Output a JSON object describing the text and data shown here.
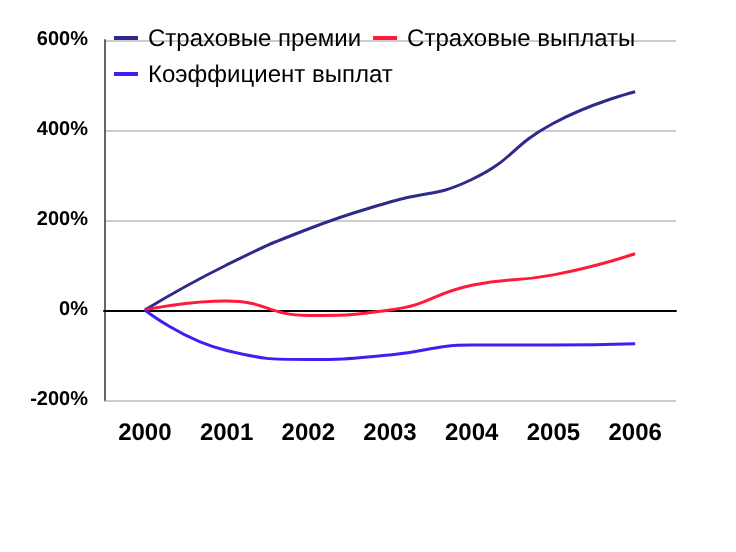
{
  "chart_data": {
    "type": "line",
    "categories": [
      "2000",
      "2001",
      "2002",
      "2003",
      "2004",
      "2005",
      "2006"
    ],
    "series": [
      {
        "name": "Страховые премии",
        "color": "#2e2a8c",
        "values": [
          0,
          100,
          180,
          240,
          290,
          415,
          485
        ]
      },
      {
        "name": "Страховые выплаты",
        "color": "#ff1a3c",
        "values": [
          0,
          20,
          -12,
          0,
          55,
          78,
          125
        ]
      },
      {
        "name": "Коэффициент выплат",
        "color": "#3b22f0",
        "values": [
          0,
          -90,
          -110,
          -100,
          -78,
          -78,
          -75
        ]
      }
    ],
    "ylim": [
      -200,
      600
    ],
    "yticks": [
      {
        "value": -200,
        "label": "-200%"
      },
      {
        "value": 0,
        "label": "0%"
      },
      {
        "value": 200,
        "label": "200%"
      },
      {
        "value": 400,
        "label": "400%"
      },
      {
        "value": 600,
        "label": "600%"
      }
    ],
    "grid": "y",
    "legend": "top",
    "marker": "none",
    "line_style": "solid"
  }
}
